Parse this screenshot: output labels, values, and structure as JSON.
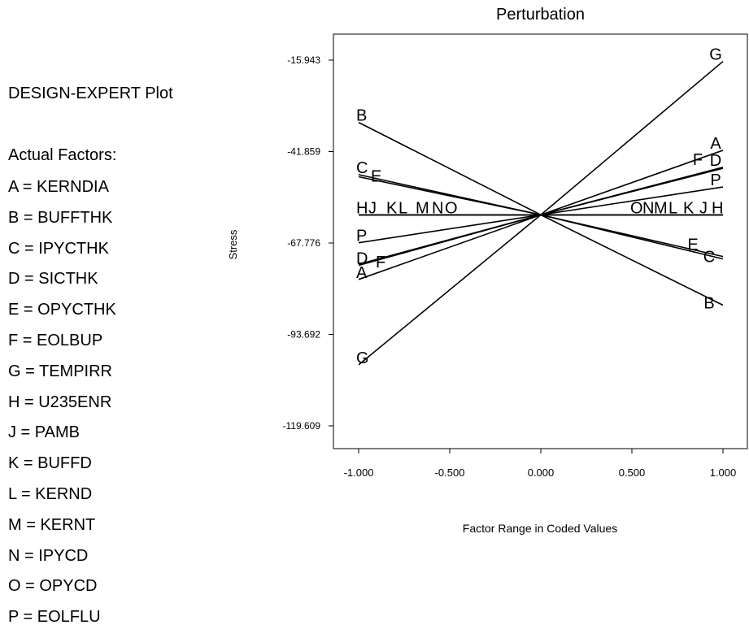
{
  "plot_label": "DESIGN-EXPERT Plot",
  "factors_heading": "Actual Factors:",
  "factors": [
    "A = KERNDIA",
    "B = BUFFTHK",
    "C = IPYCTHK",
    "D = SICTHK",
    "E = OPYCTHK",
    "F = EOLBUP",
    "G = TEMPIRR",
    "H = U235ENR",
    "J = PAMB",
    "K = BUFFD",
    "L = KERND",
    "M = KERNT",
    "N = IPYCD",
    "O = OPYCD",
    "P = EOLFLU"
  ],
  "chart_data": {
    "type": "line",
    "title": "Perturbation",
    "xlabel": "Factor Range in Coded Values",
    "ylabel": "Stress",
    "xlim": [
      -1.0,
      1.0
    ],
    "ylim": [
      -119.609,
      -15.943
    ],
    "x_ticks": [
      "-1.000",
      "-0.500",
      "0.000",
      "0.500",
      "1.000"
    ],
    "y_ticks": [
      "-15.943",
      "-41.859",
      "-67.776",
      "-93.692",
      "-119.609"
    ],
    "center": -59.8,
    "series": [
      {
        "name": "A",
        "x": [
          -1,
          0,
          1
        ],
        "y": [
          -78.1,
          -59.8,
          -41.5
        ]
      },
      {
        "name": "B",
        "x": [
          -1,
          0,
          1
        ],
        "y": [
          -33.6,
          -59.8,
          -85.4
        ]
      },
      {
        "name": "C",
        "x": [
          -1,
          0,
          1
        ],
        "y": [
          -48.4,
          -59.8,
          -72.3
        ]
      },
      {
        "name": "D",
        "x": [
          -1,
          0,
          1
        ],
        "y": [
          -74.1,
          -59.8,
          -46.3
        ]
      },
      {
        "name": "E",
        "x": [
          -1,
          0,
          1
        ],
        "y": [
          -49.0,
          -59.8,
          -71.6
        ]
      },
      {
        "name": "F",
        "x": [
          -1,
          0,
          1
        ],
        "y": [
          -73.8,
          -59.8,
          -46.6
        ]
      },
      {
        "name": "G",
        "x": [
          -1,
          0,
          1
        ],
        "y": [
          -102.3,
          -59.8,
          -16.3
        ]
      },
      {
        "name": "H",
        "x": [
          -1,
          0,
          1
        ],
        "y": [
          -59.8,
          -59.8,
          -59.8
        ]
      },
      {
        "name": "J",
        "x": [
          -1,
          0,
          1
        ],
        "y": [
          -59.8,
          -59.8,
          -59.8
        ]
      },
      {
        "name": "K",
        "x": [
          -1,
          0,
          1
        ],
        "y": [
          -59.8,
          -59.8,
          -59.8
        ]
      },
      {
        "name": "L",
        "x": [
          -1,
          0,
          1
        ],
        "y": [
          -59.8,
          -59.8,
          -59.8
        ]
      },
      {
        "name": "M",
        "x": [
          -1,
          0,
          1
        ],
        "y": [
          -59.8,
          -59.8,
          -59.8
        ]
      },
      {
        "name": "N",
        "x": [
          -1,
          0,
          1
        ],
        "y": [
          -59.8,
          -59.8,
          -59.8
        ]
      },
      {
        "name": "O",
        "x": [
          -1,
          0,
          1
        ],
        "y": [
          -59.8,
          -59.8,
          -59.8
        ]
      },
      {
        "name": "P",
        "x": [
          -1,
          0,
          1
        ],
        "y": [
          -67.7,
          -59.8,
          -51.9
        ]
      }
    ]
  }
}
